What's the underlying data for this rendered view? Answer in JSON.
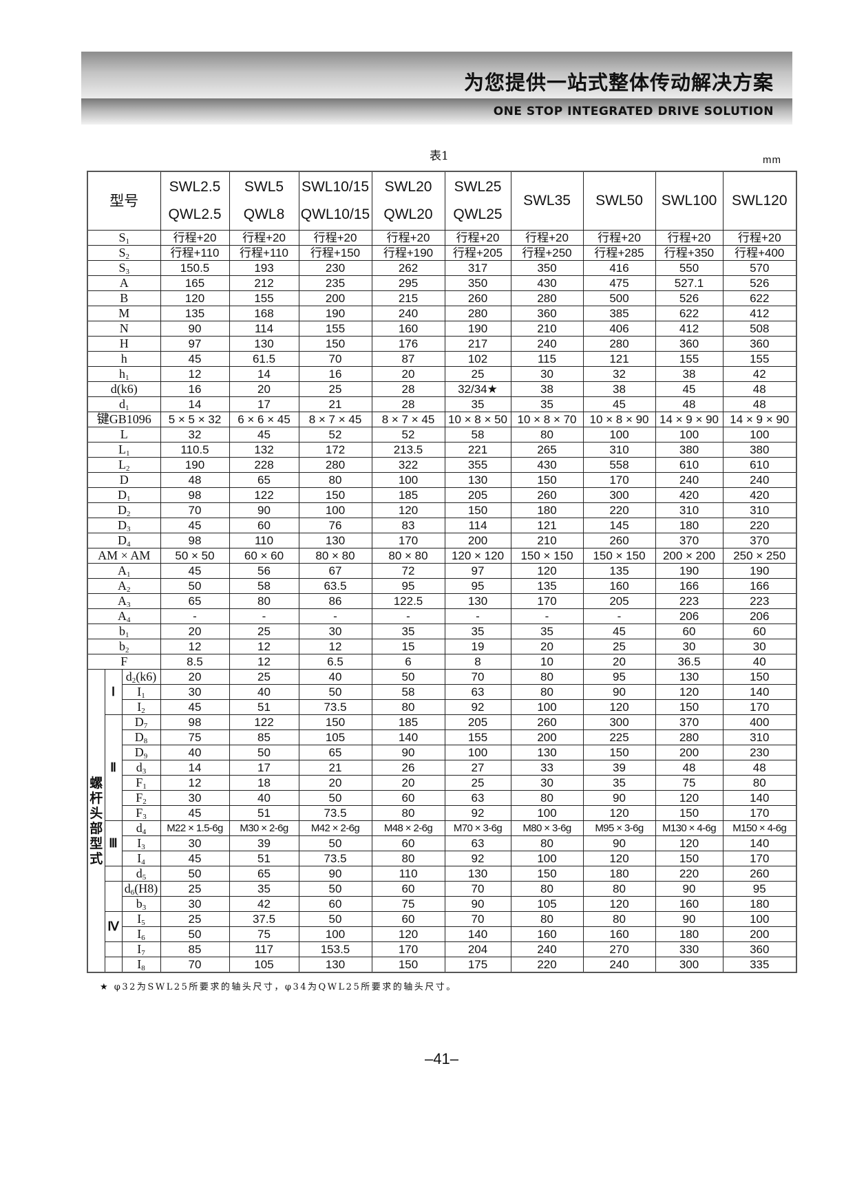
{
  "header": {
    "title_cn": "为您提供一站式整体传动解决方案",
    "title_en": "ONE STOP INTEGRATED DRIVE SOLUTION"
  },
  "table": {
    "caption": "表1",
    "unit": "mm",
    "corner_label": "型号",
    "columns": [
      [
        "SWL2.5",
        "QWL2.5"
      ],
      [
        "SWL5",
        "QWL8"
      ],
      [
        "SWL10/15",
        "QWL10/15"
      ],
      [
        "SWL20",
        "QWL20"
      ],
      [
        "SWL25",
        "QWL25"
      ],
      [
        "SWL35",
        ""
      ],
      [
        "SWL50",
        ""
      ],
      [
        "SWL100",
        ""
      ],
      [
        "SWL120",
        ""
      ]
    ],
    "rows": [
      {
        "label": "S",
        "sub": "1",
        "values": [
          "行程+20",
          "行程+20",
          "行程+20",
          "行程+20",
          "行程+20",
          "行程+20",
          "行程+20",
          "行程+20",
          "行程+20"
        ]
      },
      {
        "label": "S",
        "sub": "2",
        "values": [
          "行程+110",
          "行程+110",
          "行程+150",
          "行程+190",
          "行程+205",
          "行程+250",
          "行程+285",
          "行程+350",
          "行程+400"
        ]
      },
      {
        "label": "S",
        "sub": "3",
        "values": [
          "150.5",
          "193",
          "230",
          "262",
          "317",
          "350",
          "416",
          "550",
          "570"
        ]
      },
      {
        "label": "A",
        "values": [
          "165",
          "212",
          "235",
          "295",
          "350",
          "430",
          "475",
          "527.1",
          "526"
        ]
      },
      {
        "label": "B",
        "values": [
          "120",
          "155",
          "200",
          "215",
          "260",
          "280",
          "500",
          "526",
          "622"
        ]
      },
      {
        "label": "M",
        "values": [
          "135",
          "168",
          "190",
          "240",
          "280",
          "360",
          "385",
          "622",
          "412"
        ]
      },
      {
        "label": "N",
        "values": [
          "90",
          "114",
          "155",
          "160",
          "190",
          "210",
          "406",
          "412",
          "508"
        ]
      },
      {
        "label": "H",
        "values": [
          "97",
          "130",
          "150",
          "176",
          "217",
          "240",
          "280",
          "360",
          "360"
        ]
      },
      {
        "label": "h",
        "values": [
          "45",
          "61.5",
          "70",
          "87",
          "102",
          "115",
          "121",
          "155",
          "155"
        ]
      },
      {
        "label": "h",
        "sub": "1",
        "values": [
          "12",
          "14",
          "16",
          "20",
          "25",
          "30",
          "32",
          "38",
          "42"
        ]
      },
      {
        "label": "d(k6)",
        "values": [
          "16",
          "20",
          "25",
          "28",
          "32/34★",
          "38",
          "38",
          "45",
          "48"
        ]
      },
      {
        "label": "d",
        "sub": "1",
        "values": [
          "14",
          "17",
          "21",
          "28",
          "35",
          "35",
          "45",
          "48",
          "48"
        ]
      },
      {
        "label": "键GB1096",
        "values": [
          "5 × 5 × 32",
          "6 × 6 × 45",
          "8 × 7 × 45",
          "8 × 7 × 45",
          "10 × 8 × 50",
          "10 × 8 × 70",
          "10 × 8 × 90",
          "14 × 9 × 90",
          "14 × 9 × 90"
        ]
      },
      {
        "label": "L",
        "values": [
          "32",
          "45",
          "52",
          "52",
          "58",
          "80",
          "100",
          "100",
          "100"
        ]
      },
      {
        "label": "L",
        "sub": "1",
        "values": [
          "110.5",
          "132",
          "172",
          "213.5",
          "221",
          "265",
          "310",
          "380",
          "380"
        ]
      },
      {
        "label": "L",
        "sub": "2",
        "values": [
          "190",
          "228",
          "280",
          "322",
          "355",
          "430",
          "558",
          "610",
          "610"
        ]
      },
      {
        "label": "D",
        "values": [
          "48",
          "65",
          "80",
          "100",
          "130",
          "150",
          "170",
          "240",
          "240"
        ]
      },
      {
        "label": "D",
        "sub": "1",
        "values": [
          "98",
          "122",
          "150",
          "185",
          "205",
          "260",
          "300",
          "420",
          "420"
        ]
      },
      {
        "label": "D",
        "sub": "2",
        "values": [
          "70",
          "90",
          "100",
          "120",
          "150",
          "180",
          "220",
          "310",
          "310"
        ]
      },
      {
        "label": "D",
        "sub": "3",
        "values": [
          "45",
          "60",
          "76",
          "83",
          "114",
          "121",
          "145",
          "180",
          "220"
        ]
      },
      {
        "label": "D",
        "sub": "4",
        "values": [
          "98",
          "110",
          "130",
          "170",
          "200",
          "210",
          "260",
          "370",
          "370"
        ]
      },
      {
        "label": "AM × AM",
        "values": [
          "50 × 50",
          "60 × 60",
          "80 × 80",
          "80 × 80",
          "120 × 120",
          "150 × 150",
          "150 × 150",
          "200 × 200",
          "250 × 250"
        ]
      },
      {
        "label": "A",
        "sub": "1",
        "values": [
          "45",
          "56",
          "67",
          "72",
          "97",
          "120",
          "135",
          "190",
          "190"
        ]
      },
      {
        "label": "A",
        "sub": "2",
        "values": [
          "50",
          "58",
          "63.5",
          "95",
          "95",
          "135",
          "160",
          "166",
          "166"
        ]
      },
      {
        "label": "A",
        "sub": "3",
        "values": [
          "65",
          "80",
          "86",
          "122.5",
          "130",
          "170",
          "205",
          "223",
          "223"
        ]
      },
      {
        "label": "A",
        "sub": "4",
        "values": [
          "-",
          "-",
          "-",
          "-",
          "-",
          "-",
          "-",
          "206",
          "206"
        ]
      },
      {
        "label": "b",
        "sub": "1",
        "values": [
          "20",
          "25",
          "30",
          "35",
          "35",
          "35",
          "45",
          "60",
          "60"
        ]
      },
      {
        "label": "b",
        "sub": "2",
        "values": [
          "12",
          "12",
          "12",
          "15",
          "19",
          "20",
          "25",
          "30",
          "30"
        ]
      },
      {
        "label": "F",
        "values": [
          "8.5",
          "12",
          "6.5",
          "6",
          "8",
          "10",
          "20",
          "36.5",
          "40"
        ]
      }
    ],
    "section": {
      "label": "螺杆头部型式",
      "groups": [
        {
          "name": "Ⅰ",
          "rows": [
            {
              "label": "d",
              "sub": "2",
              "after": "(k6)",
              "values": [
                "20",
                "25",
                "40",
                "50",
                "70",
                "80",
                "95",
                "130",
                "150"
              ]
            },
            {
              "label": "I",
              "sub": "1",
              "values": [
                "30",
                "40",
                "50",
                "58",
                "63",
                "80",
                "90",
                "120",
                "140"
              ]
            },
            {
              "label": "I",
              "sub": "2",
              "values": [
                "45",
                "51",
                "73.5",
                "80",
                "92",
                "100",
                "120",
                "150",
                "170"
              ]
            }
          ]
        },
        {
          "name": "Ⅱ",
          "rows": [
            {
              "label": "D",
              "sub": "7",
              "values": [
                "98",
                "122",
                "150",
                "185",
                "205",
                "260",
                "300",
                "370",
                "400"
              ]
            },
            {
              "label": "D",
              "sub": "8",
              "values": [
                "75",
                "85",
                "105",
                "140",
                "155",
                "200",
                "225",
                "280",
                "310"
              ]
            },
            {
              "label": "D",
              "sub": "9",
              "values": [
                "40",
                "50",
                "65",
                "90",
                "100",
                "130",
                "150",
                "200",
                "230"
              ]
            },
            {
              "label": "d",
              "sub": "3",
              "values": [
                "14",
                "17",
                "21",
                "26",
                "27",
                "33",
                "39",
                "48",
                "48"
              ]
            },
            {
              "label": "F",
              "sub": "1",
              "values": [
                "12",
                "18",
                "20",
                "20",
                "25",
                "30",
                "35",
                "75",
                "80"
              ]
            },
            {
              "label": "F",
              "sub": "2",
              "values": [
                "30",
                "40",
                "50",
                "60",
                "63",
                "80",
                "90",
                "120",
                "140"
              ]
            },
            {
              "label": "F",
              "sub": "3",
              "values": [
                "45",
                "51",
                "73.5",
                "80",
                "92",
                "100",
                "120",
                "150",
                "170"
              ]
            }
          ]
        },
        {
          "name": "Ⅲ",
          "rows": [
            {
              "label": "d",
              "sub": "4",
              "values": [
                "M22 × 1.5-6g",
                "M30 × 2-6g",
                "M42 × 2-6g",
                "M48 × 2-6g",
                "M70 × 3-6g",
                "M80 × 3-6g",
                "M95 × 3-6g",
                "M130 × 4-6g",
                "M150 × 4-6g"
              ]
            },
            {
              "label": "I",
              "sub": "3",
              "values": [
                "30",
                "39",
                "50",
                "60",
                "63",
                "80",
                "90",
                "120",
                "140"
              ]
            },
            {
              "label": "I",
              "sub": "4",
              "values": [
                "45",
                "51",
                "73.5",
                "80",
                "92",
                "100",
                "120",
                "150",
                "170"
              ]
            }
          ]
        },
        {
          "name": "",
          "rows": [
            {
              "label": "d",
              "sub": "5",
              "values": [
                "50",
                "65",
                "90",
                "110",
                "130",
                "150",
                "180",
                "220",
                "260"
              ]
            }
          ]
        },
        {
          "name": "",
          "rows": [
            {
              "label": "d",
              "sub": "6",
              "after": "(H8)",
              "values": [
                "25",
                "35",
                "50",
                "60",
                "70",
                "80",
                "80",
                "90",
                "95"
              ]
            },
            {
              "label": "b",
              "sub": "3",
              "values": [
                "30",
                "42",
                "60",
                "75",
                "90",
                "105",
                "120",
                "160",
                "180"
              ]
            }
          ]
        },
        {
          "name": "Ⅳ",
          "rows": [
            {
              "label": "I",
              "sub": "5",
              "values": [
                "25",
                "37.5",
                "50",
                "60",
                "70",
                "80",
                "80",
                "90",
                "100"
              ]
            },
            {
              "label": "I",
              "sub": "6",
              "values": [
                "50",
                "75",
                "100",
                "120",
                "140",
                "160",
                "160",
                "180",
                "200"
              ]
            }
          ]
        },
        {
          "name": "",
          "rows": [
            {
              "label": "I",
              "sub": "7",
              "values": [
                "85",
                "117",
                "153.5",
                "170",
                "204",
                "240",
                "270",
                "330",
                "360"
              ]
            }
          ]
        },
        {
          "name": "",
          "rows": [
            {
              "label": "I",
              "sub": "8",
              "values": [
                "70",
                "105",
                "130",
                "150",
                "175",
                "220",
                "240",
                "300",
                "335"
              ]
            }
          ]
        }
      ]
    },
    "footnote": "★ φ32为SWL25所要求的轴头尺寸，φ34为QWL25所要求的轴头尺寸。"
  },
  "page_number": "–41–"
}
